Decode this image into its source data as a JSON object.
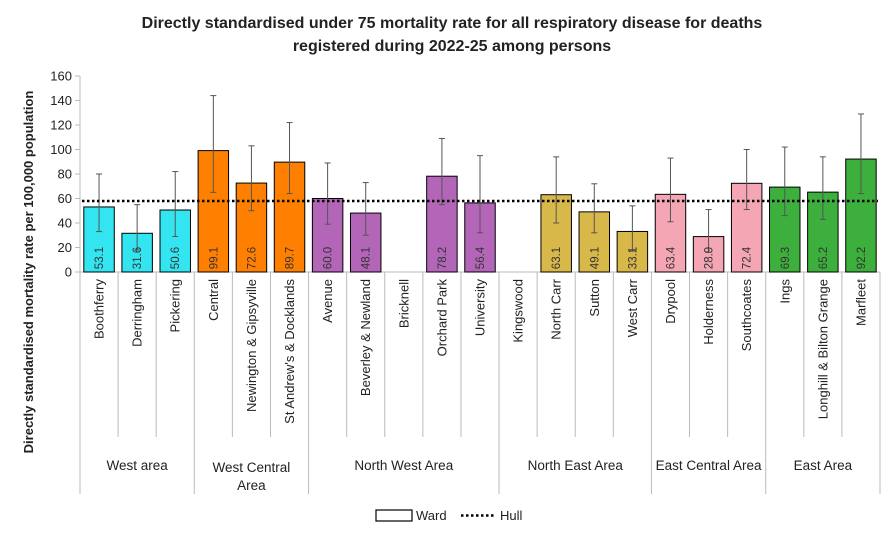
{
  "chart_data": {
    "type": "bar",
    "title_lines": [
      "Directly standardised under 75 mortality rate for all respiratory disease for deaths",
      "registered during 2022-25 among persons"
    ],
    "ylabel": "Directly standardised mortality rate per 100,000 population",
    "ylim": [
      0,
      160
    ],
    "yticks": [
      0,
      20,
      40,
      60,
      80,
      100,
      120,
      140,
      160
    ],
    "grid": false,
    "legend_position": "bottom",
    "reference_line": {
      "name": "Hull",
      "value": 58
    },
    "legend": {
      "bar_label": "Ward",
      "line_label": "Hull"
    },
    "groups": [
      {
        "name": [
          "West area"
        ],
        "color": "#33E5F0",
        "wards": [
          {
            "name": "Boothferry",
            "value": 53.1,
            "label": "53.1",
            "ci": [
              33,
              80
            ]
          },
          {
            "name": "Derringham",
            "value": 31.6,
            "label": "31.6",
            "ci": [
              18,
              55
            ]
          },
          {
            "name": "Pickering",
            "value": 50.6,
            "label": "50.6",
            "ci": [
              29,
              82
            ]
          }
        ]
      },
      {
        "name": [
          "West Central",
          "Area"
        ],
        "color": "#FF8000",
        "wards": [
          {
            "name": "Central",
            "value": 99.1,
            "label": "99.1",
            "ci": [
              65,
              144
            ]
          },
          {
            "name": "Newington & Gipsyville",
            "value": 72.6,
            "label": "72.6",
            "ci": [
              50,
              103
            ]
          },
          {
            "name": "St Andrew's & Docklands",
            "value": 89.7,
            "label": "89.7",
            "ci": [
              64,
              122
            ]
          }
        ]
      },
      {
        "name": [
          "North West Area"
        ],
        "color": "#B366B8",
        "wards": [
          {
            "name": "Avenue",
            "value": 60.0,
            "label": "60.0",
            "ci": [
              39,
              89
            ]
          },
          {
            "name": "Beverley & Newland",
            "value": 48.1,
            "label": "48.1",
            "ci": [
              30,
              73
            ]
          },
          {
            "name": "Bricknell",
            "value": null,
            "label": "",
            "ci": null
          },
          {
            "name": "Orchard Park",
            "value": 78.2,
            "label": "78.2",
            "ci": [
              55,
              109
            ]
          },
          {
            "name": "University",
            "value": 56.4,
            "label": "56.4",
            "ci": [
              32,
              95
            ]
          }
        ]
      },
      {
        "name": [
          "North East Area"
        ],
        "color": "#D9B84A",
        "wards": [
          {
            "name": "Kingswood",
            "value": null,
            "label": "",
            "ci": null
          },
          {
            "name": "North Carr",
            "value": 63.1,
            "label": "63.1",
            "ci": [
              40,
              94
            ]
          },
          {
            "name": "Sutton",
            "value": 49.1,
            "label": "49.1",
            "ci": [
              32,
              72
            ]
          },
          {
            "name": "West Carr",
            "value": 33.1,
            "label": "33.1",
            "ci": [
              17,
              54
            ]
          }
        ]
      },
      {
        "name": [
          "East Central Area"
        ],
        "color": "#F4A6B4",
        "wards": [
          {
            "name": "Drypool",
            "value": 63.4,
            "label": "63.4",
            "ci": [
              41,
              93
            ]
          },
          {
            "name": "Holderness",
            "value": 28.9,
            "label": "28.9",
            "ci": [
              16,
              51
            ]
          },
          {
            "name": "Southcoates",
            "value": 72.4,
            "label": "72.4",
            "ci": [
              51,
              100
            ]
          }
        ]
      },
      {
        "name": [
          "East Area"
        ],
        "color": "#3DAF3D",
        "wards": [
          {
            "name": "Ings",
            "value": 69.3,
            "label": "69.3",
            "ci": [
              46,
              102
            ]
          },
          {
            "name": "Longhill & Bilton Grange",
            "value": 65.2,
            "label": "65.2",
            "ci": [
              43,
              94
            ]
          },
          {
            "name": "Marfleet",
            "value": 92.2,
            "label": "92.2",
            "ci": [
              64,
              129
            ]
          }
        ]
      }
    ]
  }
}
